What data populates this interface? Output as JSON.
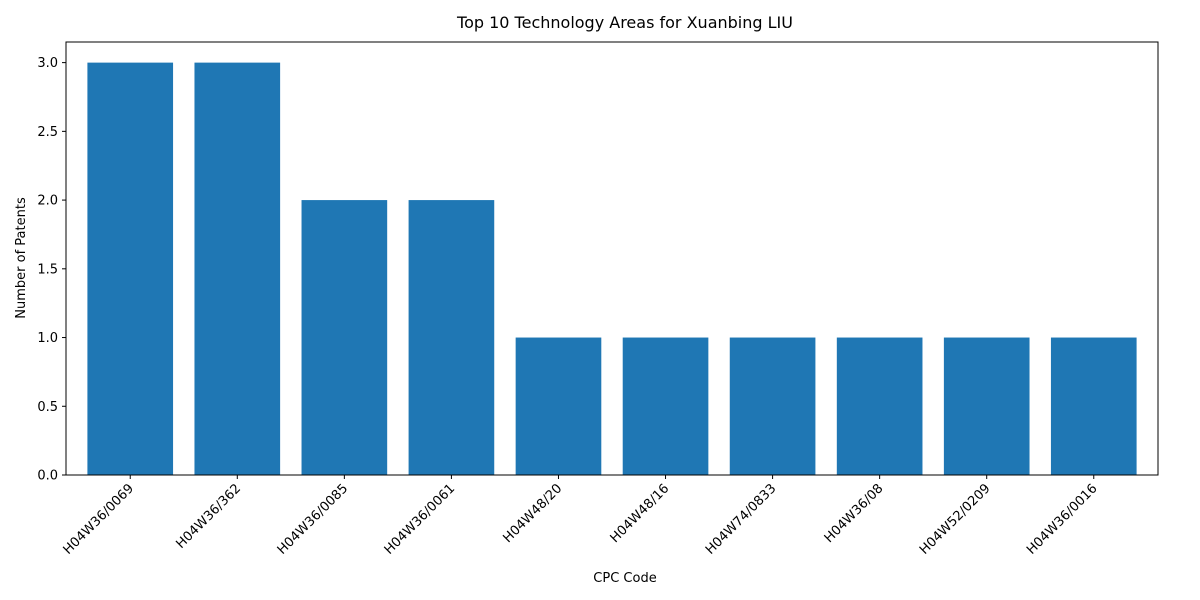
{
  "chart_data": {
    "type": "bar",
    "title": "Top 10 Technology Areas for Xuanbing LIU",
    "xlabel": "CPC Code",
    "ylabel": "Number of Patents",
    "categories": [
      "H04W36/0069",
      "H04W36/362",
      "H04W36/0085",
      "H04W36/0061",
      "H04W48/20",
      "H04W48/16",
      "H04W74/0833",
      "H04W36/08",
      "H04W52/0209",
      "H04W36/0016"
    ],
    "values": [
      3,
      3,
      2,
      2,
      1,
      1,
      1,
      1,
      1,
      1
    ],
    "ylim": [
      0,
      3.15
    ],
    "yticks": [
      "0.0",
      "0.5",
      "1.0",
      "1.5",
      "2.0",
      "2.5",
      "3.0"
    ],
    "grid": false,
    "colors": {
      "bar": "#1f77b4"
    }
  }
}
